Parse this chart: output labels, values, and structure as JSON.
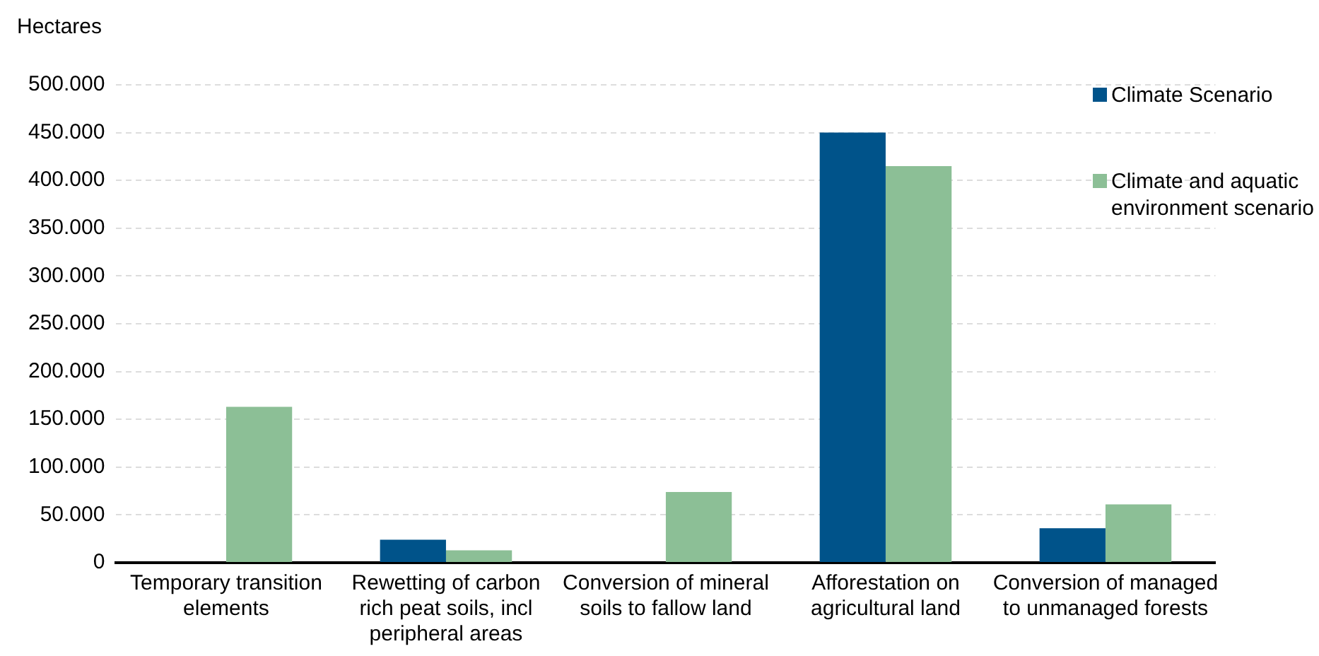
{
  "chart_data": {
    "type": "bar",
    "ylabel": "Hectares",
    "categories": [
      "Temporary transition elements",
      "Rewetting of carbon rich peat soils, incl peripheral areas",
      "Conversion of mineral soils to fallow land",
      "Afforestation on agricultural land",
      "Conversion of managed to unmanaged forests"
    ],
    "series": [
      {
        "name": "Climate Scenario",
        "color": "#00538a",
        "values": [
          0,
          24000,
          0,
          450000,
          36000
        ]
      },
      {
        "name": "Climate and aquatic environment scenario",
        "color": "#8cbf96",
        "values": [
          163000,
          13000,
          74000,
          415000,
          61000
        ]
      }
    ],
    "ylim": [
      0,
      500000
    ],
    "yticks": [
      {
        "value": 0,
        "label": "0"
      },
      {
        "value": 50000,
        "label": "50.000"
      },
      {
        "value": 100000,
        "label": "100.000"
      },
      {
        "value": 150000,
        "label": "150.000"
      },
      {
        "value": 200000,
        "label": "200.000"
      },
      {
        "value": 250000,
        "label": "250.000"
      },
      {
        "value": 300000,
        "label": "300.000"
      },
      {
        "value": 350000,
        "label": "350.000"
      },
      {
        "value": 400000,
        "label": "400.000"
      },
      {
        "value": 450000,
        "label": "450.000"
      },
      {
        "value": 500000,
        "label": "500.000"
      }
    ],
    "grid": "y",
    "legend": "right"
  }
}
